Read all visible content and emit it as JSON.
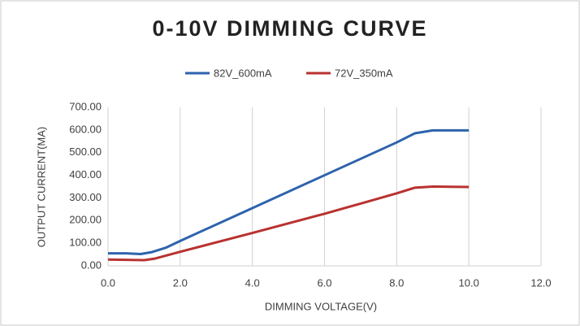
{
  "chart_data": {
    "type": "line",
    "title": "0-10V DIMMING CURVE",
    "x_label": "DIMMING VOLTAGE(V)",
    "y_label": "OUTPUT CURRENT(MA)",
    "series": [
      {
        "name": "82V_600mA",
        "color": "#2e63ad",
        "x": [
          0,
          0.5,
          0.9,
          1.2,
          1.6,
          2,
          4,
          6,
          8,
          8.5,
          9,
          10
        ],
        "values": [
          55,
          55,
          52,
          60,
          80,
          110,
          255,
          400,
          545,
          585,
          598,
          598
        ]
      },
      {
        "name": "72V_350mA",
        "color": "#b83230",
        "x": [
          0,
          1,
          1.3,
          2,
          4,
          6,
          7,
          8,
          8.5,
          9,
          10
        ],
        "values": [
          28,
          25,
          32,
          62,
          145,
          230,
          275,
          320,
          345,
          350,
          348
        ]
      }
    ],
    "xlim": [
      0,
      12
    ],
    "xticks": [
      {
        "value": 0,
        "label": "0.0"
      },
      {
        "value": 2,
        "label": "2.0"
      },
      {
        "value": 4,
        "label": "4.0"
      },
      {
        "value": 6,
        "label": "6.0"
      },
      {
        "value": 8,
        "label": "8.0"
      },
      {
        "value": 10,
        "label": "10.0"
      },
      {
        "value": 12,
        "label": "12.0"
      }
    ],
    "ylim": [
      0,
      700
    ],
    "yticks": [
      {
        "value": 0,
        "label": "0.00"
      },
      {
        "value": 100,
        "label": "100.00"
      },
      {
        "value": 200,
        "label": "200.00"
      },
      {
        "value": 300,
        "label": "300.00"
      },
      {
        "value": 400,
        "label": "400.00"
      },
      {
        "value": 500,
        "label": "500.00"
      },
      {
        "value": 600,
        "label": "600.00"
      },
      {
        "value": 700,
        "label": "700.00"
      }
    ],
    "grid": "x"
  }
}
